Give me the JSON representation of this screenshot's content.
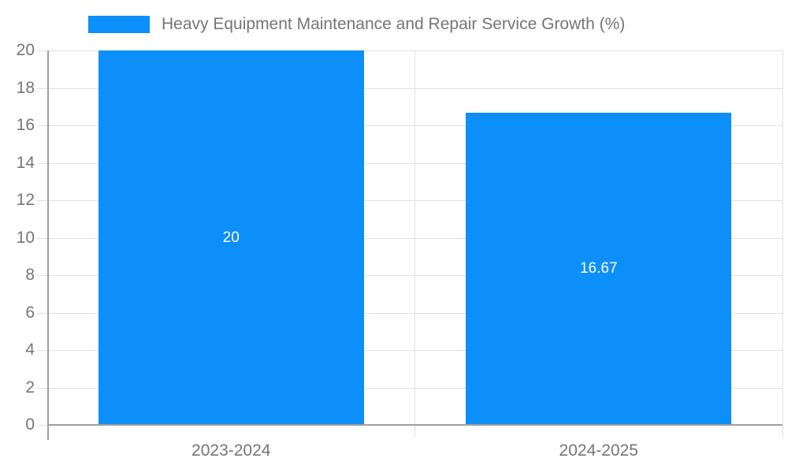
{
  "chart_data": {
    "type": "bar",
    "title": "Heavy Equipment Maintenance and Repair Service Growth (%)",
    "categories": [
      "2023-2024",
      "2024-2025"
    ],
    "values": [
      20,
      16.67
    ],
    "bar_labels": [
      "20",
      "16.67"
    ],
    "xlabel": "",
    "ylabel": "",
    "ylim": [
      0,
      20
    ],
    "yticks": [
      0,
      2,
      4,
      6,
      8,
      10,
      12,
      14,
      16,
      18,
      20
    ],
    "grid": true,
    "legend_position": "top",
    "colors": {
      "bar": "#0d8ff9",
      "grid": "#e0e0e0",
      "axis": "#9e9e9e",
      "text": "#757575",
      "bar_label": "#ffffff",
      "background": "#ffffff"
    }
  }
}
